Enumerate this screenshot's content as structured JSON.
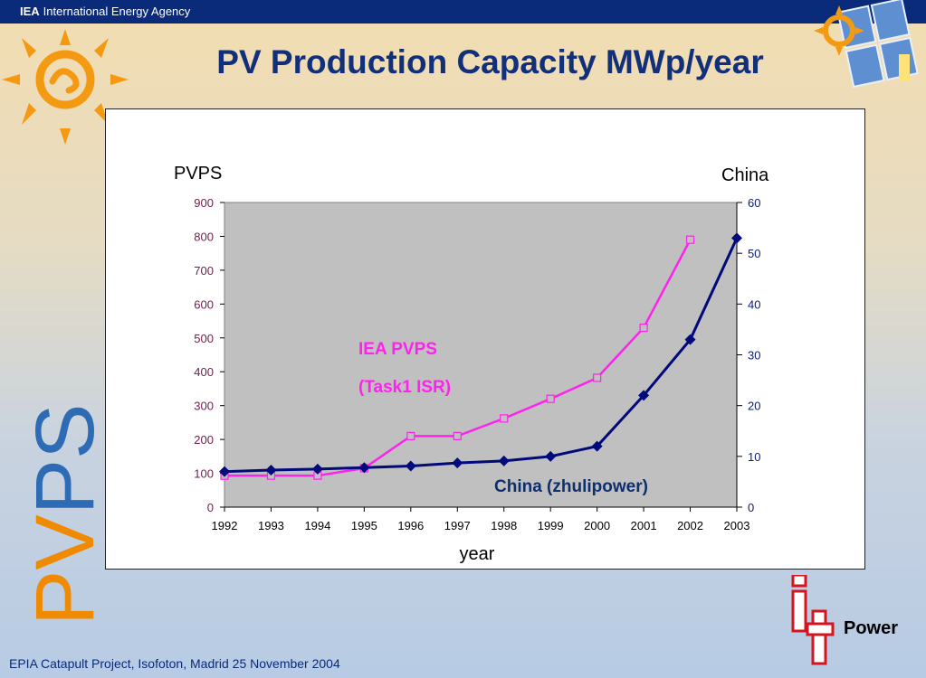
{
  "header": {
    "org_abbr": "IEA",
    "org_name": "International Energy Agency"
  },
  "slide_title": "PV Production Capacity MWp/year",
  "side_text": {
    "pv": "PV",
    "ps": "PS"
  },
  "footer_text": "EPIA Catapult Project, Isofoton, Madrid 25 November 2004",
  "logo_text": {
    "it": "it",
    "power": "Power"
  },
  "colors": {
    "pvps": "#ff22ee",
    "china": "#000a7a",
    "plot_bg": "#c0c0c0",
    "title": "#12307a",
    "orange": "#f08a00",
    "blue": "#2d6cb5"
  },
  "chart_data": {
    "type": "line",
    "left_axis_title": "PVPS",
    "right_axis_title": "China",
    "xlabel": "year",
    "categories": [
      "1992",
      "1993",
      "1994",
      "1995",
      "1996",
      "1997",
      "1998",
      "1999",
      "2000",
      "2001",
      "2002",
      "2003"
    ],
    "y_left": {
      "min": 0,
      "max": 900,
      "ticks": [
        "0",
        "100",
        "200",
        "300",
        "400",
        "500",
        "600",
        "700",
        "800",
        "900"
      ]
    },
    "y_right": {
      "min": 0,
      "max": 60,
      "ticks": [
        "0",
        "10",
        "20",
        "30",
        "40",
        "50",
        "60"
      ]
    },
    "series": [
      {
        "name": "IEA PVPS (Task1 ISR)",
        "label_lines": [
          "IEA PVPS",
          "(Task1 ISR)"
        ],
        "axis": "left",
        "marker": "square",
        "values": [
          93,
          93,
          93,
          115,
          210,
          210,
          262,
          320,
          382,
          530,
          790,
          null
        ]
      },
      {
        "name": "China (zhulipower)",
        "label_lines": [
          "China (zhulipower)"
        ],
        "axis": "right",
        "marker": "diamond",
        "values": [
          7,
          7.3,
          7.5,
          7.8,
          8.1,
          8.7,
          9.1,
          10,
          12,
          22,
          33,
          53
        ]
      }
    ],
    "grid": false
  }
}
